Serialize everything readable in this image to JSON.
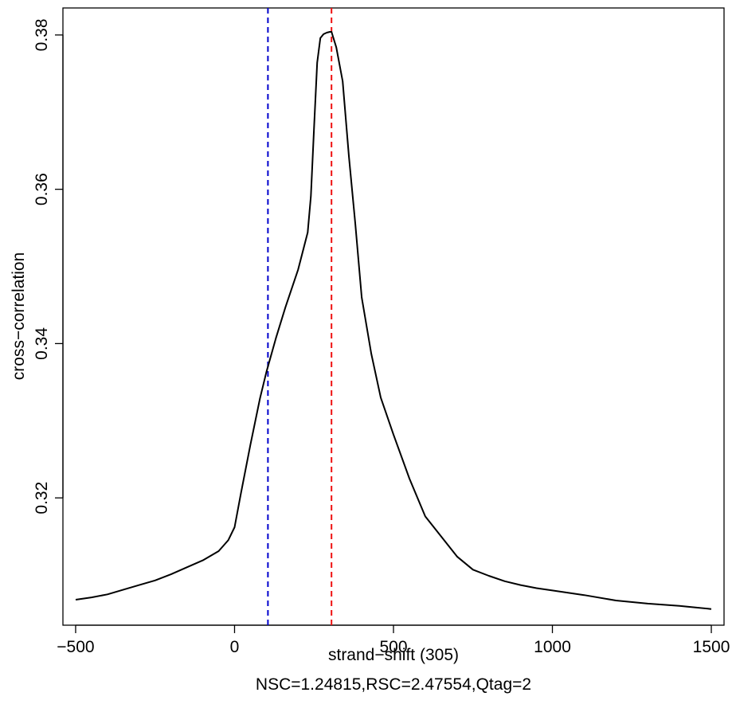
{
  "chart_data": {
    "type": "line",
    "title": "",
    "xlabel": "strand−shift (305)",
    "subtitle": "NSC=1.24815,RSC=2.47554,Qtag=2",
    "ylabel": "cross−correlation",
    "xlim": [
      -540,
      1540
    ],
    "ylim": [
      0.3035,
      0.3835
    ],
    "x_ticks": [
      -500,
      0,
      500,
      1000,
      1500
    ],
    "x_tick_labels": [
      "−500",
      "0",
      "500",
      "1000",
      "1500"
    ],
    "y_ticks": [
      0.32,
      0.34,
      0.36,
      0.38
    ],
    "y_tick_labels": [
      "0.32",
      "0.34",
      "0.36",
      "0.38"
    ],
    "grid": false,
    "series": [
      {
        "color": "#000000",
        "x": [
          -500,
          -450,
          -400,
          -350,
          -300,
          -250,
          -200,
          -150,
          -100,
          -50,
          -20,
          0,
          20,
          50,
          80,
          100,
          130,
          160,
          200,
          230,
          240,
          250,
          260,
          270,
          280,
          290,
          300,
          305,
          320,
          340,
          360,
          380,
          400,
          430,
          460,
          500,
          550,
          600,
          650,
          700,
          750,
          800,
          850,
          900,
          950,
          1000,
          1100,
          1200,
          1300,
          1400,
          1500
        ],
        "y": [
          0.3068,
          0.3071,
          0.3075,
          0.3081,
          0.3087,
          0.3093,
          0.3101,
          0.311,
          0.3119,
          0.3131,
          0.3145,
          0.3162,
          0.3206,
          0.3269,
          0.3329,
          0.3363,
          0.3407,
          0.3447,
          0.3496,
          0.3544,
          0.3591,
          0.3678,
          0.3764,
          0.3796,
          0.3801,
          0.3803,
          0.3804,
          0.3804,
          0.3784,
          0.374,
          0.3642,
          0.3555,
          0.346,
          0.3387,
          0.333,
          0.3282,
          0.3225,
          0.3176,
          0.315,
          0.3124,
          0.3107,
          0.3099,
          0.3092,
          0.3087,
          0.3083,
          0.308,
          0.3074,
          0.3067,
          0.3063,
          0.306,
          0.3056
        ]
      }
    ],
    "vlines": [
      {
        "x": 105,
        "color": "#0000cc",
        "style": "dashed"
      },
      {
        "x": 305,
        "color": "#ee1111",
        "style": "dashed"
      }
    ]
  }
}
